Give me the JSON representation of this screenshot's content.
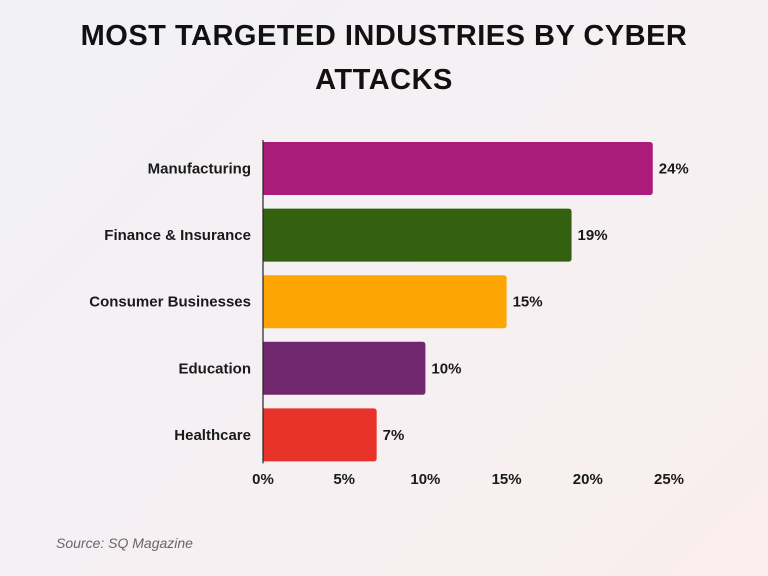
{
  "chart_data": {
    "type": "bar",
    "orientation": "horizontal",
    "title": "MOST TARGETED INDUSTRIES BY CYBER ATTACKS",
    "categories": [
      "Manufacturing",
      "Finance & Insurance",
      "Consumer Businesses",
      "Education",
      "Healthcare"
    ],
    "values": [
      24,
      19,
      15,
      10,
      7
    ],
    "value_labels": [
      "24%",
      "19%",
      "15%",
      "10%",
      "7%"
    ],
    "colors": [
      "#ab1b7a",
      "#336110",
      "#fca503",
      "#70276e",
      "#e8332a"
    ],
    "xticks": [
      "0%",
      "5%",
      "10%",
      "15%",
      "20%",
      "25%"
    ],
    "xlim": [
      0,
      25
    ],
    "xlabel": "",
    "ylabel": "",
    "grid": false,
    "legend": "none"
  },
  "source": "Source: SQ Magazine"
}
